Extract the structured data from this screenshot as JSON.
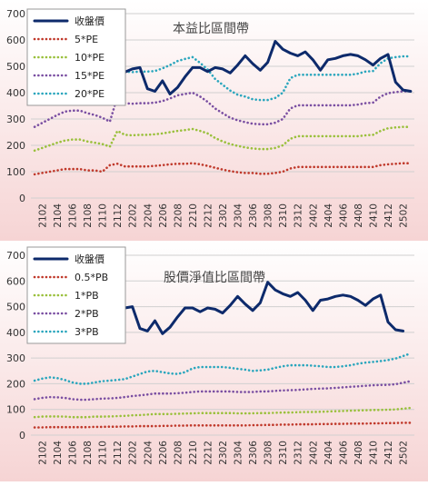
{
  "colors": {
    "close": "#0d2a6b",
    "s1": "#c0392b",
    "s2": "#9ac03c",
    "s3": "#7a4fa2",
    "s4": "#2aa6bd",
    "grid": "#d0d0d0",
    "background_gradient": [
      "#ffffff",
      "#f6d4d4"
    ]
  },
  "chart_data": [
    {
      "type": "line",
      "title": "本益比區間帶",
      "ylim": [
        0,
        700
      ],
      "yticks": [
        0,
        100,
        200,
        300,
        400,
        500,
        600,
        700
      ],
      "x": [
        "2101",
        "2102",
        "2103",
        "2104",
        "2105",
        "2106",
        "2107",
        "2108",
        "2109",
        "2110",
        "2111",
        "2112",
        "2201",
        "2202",
        "2203",
        "2204",
        "2205",
        "2206",
        "2207",
        "2208",
        "2209",
        "2210",
        "2211",
        "2212",
        "2301",
        "2302",
        "2303",
        "2304",
        "2305",
        "2306",
        "2307",
        "2308",
        "2309",
        "2310",
        "2311",
        "2312",
        "2401",
        "2402",
        "2403",
        "2404",
        "2405",
        "2406",
        "2407",
        "2408",
        "2409",
        "2410",
        "2411",
        "2412",
        "2501",
        "2502",
        "2503"
      ],
      "xtick_labels": [
        "2102",
        "2104",
        "2106",
        "2108",
        "2110",
        "2112",
        "2202",
        "2204",
        "2206",
        "2208",
        "2210",
        "2212",
        "2302",
        "2304",
        "2306",
        "2308",
        "2310",
        "2312",
        "2402",
        "2404",
        "2406",
        "2408",
        "2410",
        "2412",
        "2502"
      ],
      "grid": true,
      "legend_position": "top-left",
      "series": [
        {
          "name": "收盤價",
          "style": "solid",
          "values": [
            null,
            null,
            null,
            null,
            null,
            null,
            null,
            null,
            null,
            null,
            610,
            585,
            478,
            490,
            495,
            415,
            405,
            445,
            395,
            420,
            460,
            495,
            495,
            480,
            495,
            490,
            475,
            505,
            540,
            510,
            485,
            515,
            595,
            565,
            550,
            540,
            555,
            525,
            485,
            525,
            530,
            540,
            545,
            540,
            525,
            505,
            530,
            545,
            440,
            410,
            405
          ]
        },
        {
          "name": "5*PE",
          "style": "dotted",
          "values": [
            90,
            95,
            100,
            105,
            110,
            110,
            110,
            105,
            105,
            100,
            125,
            130,
            120,
            120,
            120,
            120,
            122,
            125,
            128,
            130,
            130,
            132,
            128,
            122,
            115,
            108,
            102,
            98,
            95,
            95,
            92,
            92,
            95,
            100,
            112,
            118,
            118,
            118,
            118,
            118,
            118,
            118,
            118,
            118,
            118,
            118,
            125,
            128,
            130,
            132,
            132
          ]
        },
        {
          "name": "10*PE",
          "style": "dotted",
          "values": [
            180,
            190,
            200,
            210,
            218,
            222,
            222,
            215,
            210,
            205,
            195,
            255,
            240,
            238,
            240,
            240,
            242,
            245,
            250,
            255,
            258,
            262,
            255,
            245,
            228,
            215,
            205,
            198,
            192,
            188,
            186,
            186,
            190,
            200,
            225,
            235,
            235,
            235,
            235,
            235,
            235,
            235,
            235,
            235,
            238,
            240,
            255,
            265,
            268,
            270,
            270
          ]
        },
        {
          "name": "15*PE",
          "style": "dotted",
          "values": [
            270,
            285,
            300,
            315,
            328,
            332,
            332,
            322,
            315,
            305,
            290,
            385,
            360,
            358,
            360,
            360,
            362,
            368,
            378,
            390,
            395,
            400,
            385,
            365,
            340,
            322,
            305,
            295,
            288,
            282,
            280,
            280,
            286,
            300,
            340,
            352,
            352,
            352,
            352,
            352,
            352,
            352,
            352,
            355,
            360,
            362,
            385,
            398,
            402,
            405,
            405
          ]
        },
        {
          "name": "20*PE",
          "style": "dotted",
          "values": [
            365,
            380,
            400,
            420,
            438,
            442,
            442,
            430,
            420,
            408,
            390,
            513,
            480,
            478,
            480,
            480,
            482,
            492,
            505,
            520,
            528,
            535,
            513,
            488,
            452,
            430,
            408,
            392,
            385,
            375,
            372,
            372,
            380,
            400,
            455,
            468,
            468,
            468,
            468,
            468,
            468,
            468,
            468,
            472,
            480,
            482,
            512,
            530,
            535,
            538,
            538
          ]
        }
      ]
    },
    {
      "type": "line",
      "title": "股價淨值比區間帶",
      "ylim": [
        0,
        700
      ],
      "yticks": [
        0,
        100,
        200,
        300,
        400,
        500,
        600,
        700
      ],
      "x": [
        "2101",
        "2102",
        "2103",
        "2104",
        "2105",
        "2106",
        "2107",
        "2108",
        "2109",
        "2110",
        "2111",
        "2112",
        "2201",
        "2202",
        "2203",
        "2204",
        "2205",
        "2206",
        "2207",
        "2208",
        "2209",
        "2210",
        "2211",
        "2212",
        "2301",
        "2302",
        "2303",
        "2304",
        "2305",
        "2306",
        "2307",
        "2308",
        "2309",
        "2310",
        "2311",
        "2312",
        "2401",
        "2402",
        "2403",
        "2404",
        "2405",
        "2406",
        "2407",
        "2408",
        "2409",
        "2410",
        "2411",
        "2412",
        "2501",
        "2502",
        "2503"
      ],
      "xtick_labels": [
        "2102",
        "2104",
        "2106",
        "2108",
        "2110",
        "2112",
        "2202",
        "2204",
        "2206",
        "2208",
        "2210",
        "2212",
        "2302",
        "2304",
        "2306",
        "2308",
        "2310",
        "2312",
        "2402",
        "2404",
        "2406",
        "2408",
        "2410",
        "2412",
        "2502"
      ],
      "grid": true,
      "legend_position": "top-left",
      "series": [
        {
          "name": "收盤價",
          "style": "solid",
          "values": [
            null,
            null,
            null,
            null,
            null,
            null,
            null,
            null,
            null,
            null,
            null,
            480,
            495,
            500,
            415,
            405,
            445,
            395,
            420,
            460,
            495,
            495,
            480,
            495,
            490,
            475,
            505,
            540,
            510,
            485,
            515,
            595,
            565,
            550,
            540,
            555,
            525,
            485,
            525,
            530,
            540,
            545,
            540,
            525,
            505,
            530,
            545,
            440,
            410,
            405,
            null
          ]
        },
        {
          "name": "0.5*PB",
          "style": "dotted",
          "values": [
            30,
            30,
            31,
            31,
            31,
            31,
            31,
            31,
            32,
            32,
            33,
            33,
            34,
            34,
            35,
            35,
            35,
            36,
            36,
            37,
            37,
            38,
            38,
            38,
            38,
            38,
            38,
            38,
            38,
            39,
            39,
            40,
            40,
            41,
            41,
            42,
            42,
            42,
            43,
            43,
            44,
            44,
            45,
            45,
            45,
            46,
            46,
            47,
            47,
            48,
            48
          ]
        },
        {
          "name": "1*PB",
          "style": "dotted",
          "values": [
            70,
            72,
            73,
            73,
            72,
            70,
            70,
            70,
            72,
            72,
            73,
            74,
            75,
            77,
            78,
            80,
            82,
            82,
            82,
            83,
            84,
            85,
            86,
            86,
            86,
            86,
            86,
            85,
            85,
            85,
            86,
            86,
            87,
            88,
            88,
            89,
            90,
            90,
            91,
            92,
            93,
            94,
            95,
            96,
            97,
            98,
            98,
            99,
            100,
            103,
            106
          ]
        },
        {
          "name": "2*PB",
          "style": "dotted",
          "values": [
            140,
            145,
            148,
            147,
            145,
            140,
            138,
            138,
            140,
            142,
            143,
            145,
            148,
            152,
            155,
            158,
            162,
            162,
            162,
            163,
            165,
            168,
            170,
            170,
            170,
            170,
            170,
            168,
            168,
            168,
            170,
            170,
            172,
            174,
            175,
            176,
            178,
            180,
            181,
            182,
            184,
            186,
            188,
            190,
            192,
            194,
            195,
            196,
            198,
            204,
            210
          ]
        },
        {
          "name": "3*PB",
          "style": "dotted",
          "values": [
            212,
            220,
            225,
            222,
            215,
            205,
            200,
            200,
            205,
            210,
            212,
            215,
            218,
            228,
            238,
            248,
            250,
            245,
            240,
            238,
            245,
            260,
            265,
            265,
            265,
            265,
            262,
            258,
            255,
            250,
            252,
            255,
            262,
            268,
            272,
            272,
            272,
            270,
            268,
            265,
            265,
            268,
            272,
            278,
            282,
            285,
            288,
            292,
            298,
            308,
            318
          ]
        }
      ]
    }
  ]
}
